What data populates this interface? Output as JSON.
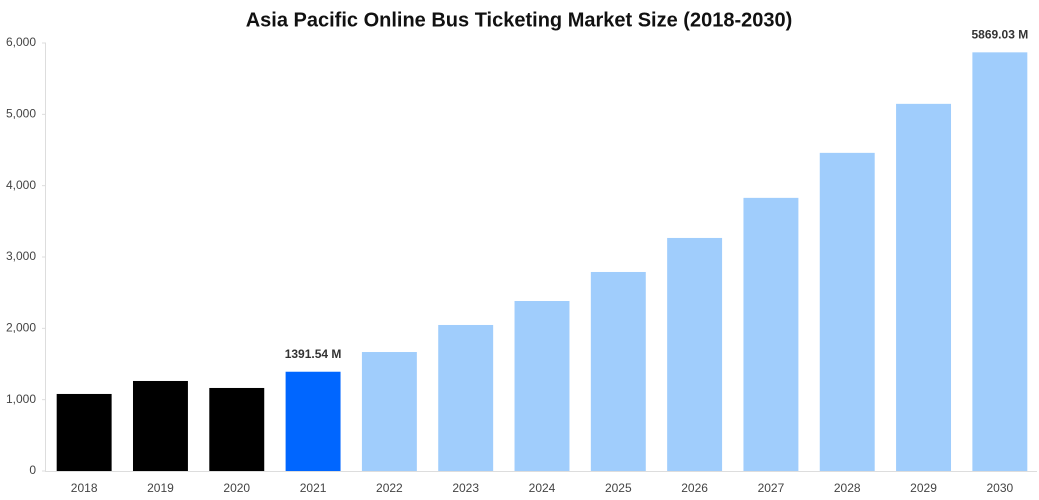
{
  "chart_data": {
    "type": "bar",
    "title": "Asia Pacific Online Bus Ticketing Market Size (2018-2030)",
    "categories": [
      "2018",
      "2019",
      "2020",
      "2021",
      "2022",
      "2023",
      "2024",
      "2025",
      "2026",
      "2027",
      "2028",
      "2029",
      "2030"
    ],
    "values": [
      1080,
      1262,
      1164,
      1391.54,
      1668,
      2047,
      2383,
      2790,
      3267,
      3829,
      4460,
      5147,
      5869.03
    ],
    "value_labels": [
      null,
      null,
      null,
      "1391.54 M",
      null,
      null,
      null,
      null,
      null,
      null,
      null,
      null,
      "5869.03 M"
    ],
    "colors": [
      "#000000",
      "#000000",
      "#000000",
      "#0066ff",
      "#a0cdfc",
      "#a0cdfc",
      "#a0cdfc",
      "#a0cdfc",
      "#a0cdfc",
      "#a0cdfc",
      "#a0cdfc",
      "#a0cdfc",
      "#a0cdfc"
    ],
    "ylim": [
      0,
      6000
    ],
    "yticks": [
      0,
      {
        "value": 1000,
        "label": "1,000"
      },
      {
        "value": 2000,
        "label": "2,000"
      },
      {
        "value": 3000,
        "label": "3,000"
      },
      {
        "value": 4000,
        "label": "4,000"
      },
      {
        "value": 5000,
        "label": "5,000"
      },
      {
        "value": 6000,
        "label": "6,000"
      }
    ],
    "grid": false
  }
}
